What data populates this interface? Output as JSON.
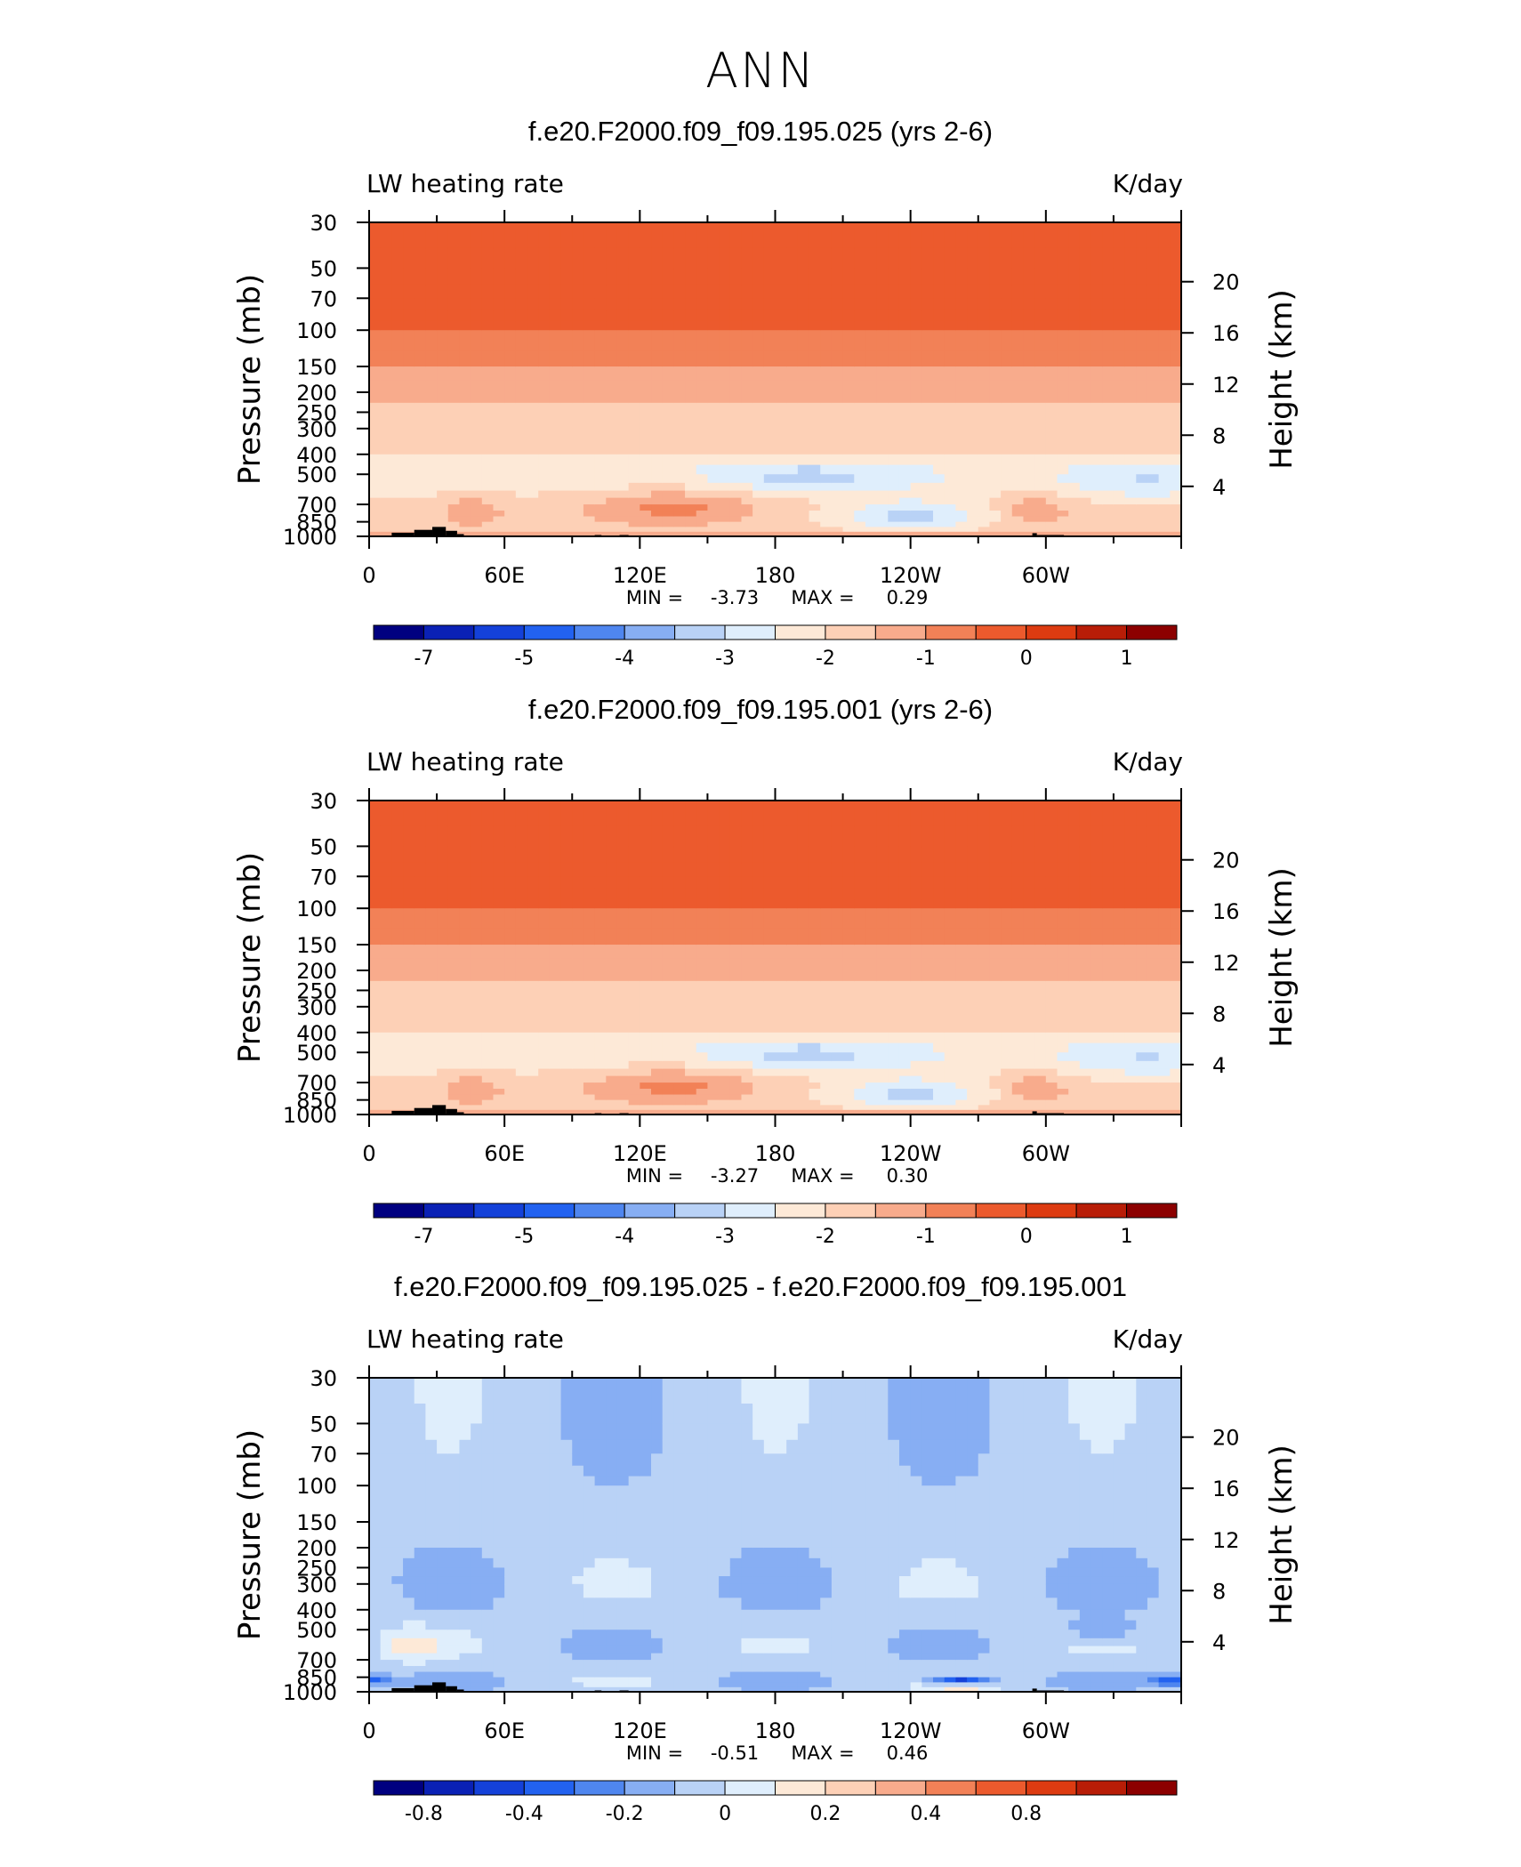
{
  "figure": {
    "title": "ANN"
  },
  "chart_data": [
    {
      "type": "heatmap",
      "title": "f.e20.F2000.f09_f09.195.025 (yrs 2-6)",
      "subtitle_left": "LW heating rate",
      "subtitle_right": "K/day",
      "ylabel": "Pressure (mb)",
      "y2label": "Height (km)",
      "x_ticks": [
        "0",
        "60E",
        "120E",
        "180",
        "120W",
        "60W"
      ],
      "y_ticks": [
        "30",
        "50",
        "70",
        "100",
        "150",
        "200",
        "250",
        "300",
        "400",
        "500",
        "700",
        "850",
        "1000"
      ],
      "y2_ticks": [
        "20",
        "16",
        "12",
        "8",
        "4"
      ],
      "stats": {
        "min_label": "MIN =",
        "min": "-3.73",
        "max_label": "MAX =",
        "max": "0.29"
      },
      "colorbar": {
        "labels": [
          "-7",
          "-5",
          "-4",
          "-3",
          "-2",
          "-1",
          "0",
          "1"
        ],
        "colors": [
          "#000080",
          "#0a21b5",
          "#1441d9",
          "#2262f0",
          "#4f86ef",
          "#87aef3",
          "#b9d2f6",
          "#dfeefc",
          "#fde9d7",
          "#fdd0b6",
          "#f8ab8c",
          "#f28157",
          "#ec5a2d",
          "#dd3b11",
          "#b81d07",
          "#8c0000"
        ]
      }
    },
    {
      "type": "heatmap",
      "title": "f.e20.F2000.f09_f09.195.001 (yrs 2-6)",
      "subtitle_left": "LW heating rate",
      "subtitle_right": "K/day",
      "ylabel": "Pressure (mb)",
      "y2label": "Height (km)",
      "x_ticks": [
        "0",
        "60E",
        "120E",
        "180",
        "120W",
        "60W"
      ],
      "y_ticks": [
        "30",
        "50",
        "70",
        "100",
        "150",
        "200",
        "250",
        "300",
        "400",
        "500",
        "700",
        "850",
        "1000"
      ],
      "y2_ticks": [
        "20",
        "16",
        "12",
        "8",
        "4"
      ],
      "stats": {
        "min_label": "MIN =",
        "min": "-3.27",
        "max_label": "MAX =",
        "max": "0.30"
      },
      "colorbar": {
        "labels": [
          "-7",
          "-5",
          "-4",
          "-3",
          "-2",
          "-1",
          "0",
          "1"
        ],
        "colors": [
          "#000080",
          "#0a21b5",
          "#1441d9",
          "#2262f0",
          "#4f86ef",
          "#87aef3",
          "#b9d2f6",
          "#dfeefc",
          "#fde9d7",
          "#fdd0b6",
          "#f8ab8c",
          "#f28157",
          "#ec5a2d",
          "#dd3b11",
          "#b81d07",
          "#8c0000"
        ]
      }
    },
    {
      "type": "heatmap",
      "title": "f.e20.F2000.f09_f09.195.025 - f.e20.F2000.f09_f09.195.001",
      "subtitle_left": "LW heating rate",
      "subtitle_right": "K/day",
      "ylabel": "Pressure (mb)",
      "y2label": "Height (km)",
      "x_ticks": [
        "0",
        "60E",
        "120E",
        "180",
        "120W",
        "60W"
      ],
      "y_ticks": [
        "30",
        "50",
        "70",
        "100",
        "150",
        "200",
        "250",
        "300",
        "400",
        "500",
        "700",
        "850",
        "1000"
      ],
      "y2_ticks": [
        "20",
        "16",
        "12",
        "8",
        "4"
      ],
      "stats": {
        "min_label": "MIN =",
        "min": "-0.51",
        "max_label": "MAX =",
        "max": "0.46"
      },
      "colorbar": {
        "labels": [
          "-0.8",
          "-0.4",
          "-0.2",
          "0",
          "0.2",
          "0.4",
          "0.8"
        ],
        "colors": [
          "#000080",
          "#0a21b5",
          "#1441d9",
          "#2262f0",
          "#4f86ef",
          "#87aef3",
          "#b9d2f6",
          "#dfeefc",
          "#fde9d7",
          "#fdd0b6",
          "#f8ab8c",
          "#f28157",
          "#ec5a2d",
          "#dd3b11",
          "#b81d07",
          "#8c0000"
        ]
      }
    }
  ]
}
